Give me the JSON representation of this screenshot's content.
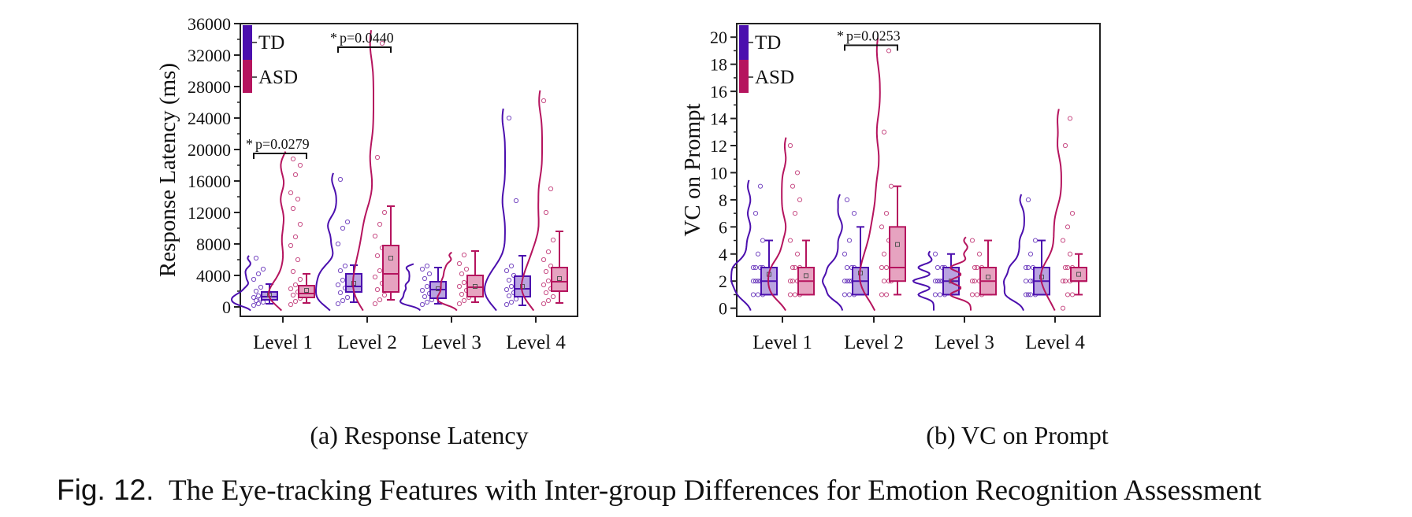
{
  "figure": {
    "prefix": "Fig. 12.",
    "caption": "The Eye-tracking Features with Inter-group Differences for Emotion Recognition Assessment"
  },
  "colors": {
    "td": "#4B0FAE",
    "asd": "#B5145E",
    "td_box": "#B9A3E0",
    "asd_box": "#E6A3C0"
  },
  "legend": [
    "TD",
    "ASD"
  ],
  "chart_data": [
    {
      "type": "box",
      "subcaption": "(a) Response Latency",
      "ylabel": "Response Latency (ms)",
      "ylim": [
        -1200,
        36000
      ],
      "yticks": [
        0,
        4000,
        8000,
        12000,
        16000,
        20000,
        24000,
        28000,
        32000,
        36000
      ],
      "categories": [
        "Level 1",
        "Level 2",
        "Level 3",
        "Level 4"
      ],
      "series": [
        {
          "name": "TD",
          "boxes": [
            {
              "min": 400,
              "q1": 900,
              "median": 1300,
              "q3": 1900,
              "max": 2900,
              "mean": 1500,
              "points": [
                200,
                400,
                600,
                800,
                1000,
                1200,
                1400,
                1600,
                2000,
                2500,
                3500,
                4200,
                4800,
                6200
              ]
            },
            {
              "min": 600,
              "q1": 1900,
              "median": 2600,
              "q3": 4200,
              "max": 5300,
              "mean": 3000,
              "points": [
                400,
                800,
                1200,
                1800,
                2400,
                2800,
                3400,
                4000,
                4600,
                5200,
                8000,
                10000,
                10800,
                16200
              ]
            },
            {
              "min": 400,
              "q1": 1100,
              "median": 2200,
              "q3": 3200,
              "max": 5000,
              "mean": 2300,
              "points": [
                300,
                600,
                900,
                1300,
                1700,
                2100,
                2600,
                3000,
                3600,
                4200,
                4800,
                5200
              ]
            },
            {
              "min": 200,
              "q1": 1300,
              "median": 2300,
              "q3": 3900,
              "max": 6500,
              "mean": 2600,
              "points": [
                300,
                600,
                1000,
                1400,
                1800,
                2200,
                2600,
                3000,
                3400,
                4000,
                4600,
                5200,
                13500,
                24000
              ]
            }
          ]
        },
        {
          "name": "ASD",
          "boxes": [
            {
              "min": 500,
              "q1": 1200,
              "median": 1700,
              "q3": 2700,
              "max": 4200,
              "mean": 2100,
              "points": [
                300,
                700,
                1100,
                1500,
                1900,
                2300,
                2800,
                3500,
                4500,
                6000,
                7800,
                8900,
                10500,
                12500,
                13700,
                14500,
                16800,
                18000,
                18800
              ]
            },
            {
              "min": 900,
              "q1": 1900,
              "median": 4200,
              "q3": 7800,
              "max": 12800,
              "mean": 6200,
              "points": [
                400,
                900,
                1500,
                2200,
                3000,
                3800,
                4600,
                5500,
                6500,
                7500,
                9000,
                10500,
                12000,
                19000,
                33500
              ]
            },
            {
              "min": 600,
              "q1": 1300,
              "median": 2500,
              "q3": 4000,
              "max": 7100,
              "mean": 2600,
              "points": [
                400,
                800,
                1200,
                1600,
                2100,
                2600,
                3100,
                3600,
                4200,
                4800,
                5500,
                6600
              ]
            },
            {
              "min": 500,
              "q1": 2000,
              "median": 3200,
              "q3": 5000,
              "max": 9600,
              "mean": 3600,
              "points": [
                400,
                800,
                1300,
                1800,
                2300,
                2800,
                3300,
                3800,
                4500,
                5200,
                6000,
                7000,
                8500,
                12000,
                15000,
                26200
              ]
            }
          ]
        }
      ],
      "annotations": [
        {
          "category": "Level 1",
          "star": "*",
          "text": "p=0.0279",
          "y": 19500
        },
        {
          "category": "Level 2",
          "star": "*",
          "text": "p=0.0440",
          "y": 33000
        }
      ]
    },
    {
      "type": "box",
      "subcaption": "(b) VC on Prompt",
      "ylabel": "VC on Prompt",
      "ylim": [
        -0.6,
        21
      ],
      "yticks": [
        0,
        2,
        4,
        6,
        8,
        10,
        12,
        14,
        16,
        18,
        20
      ],
      "categories": [
        "Level 1",
        "Level 2",
        "Level 3",
        "Level 4"
      ],
      "series": [
        {
          "name": "TD",
          "boxes": [
            {
              "min": 1,
              "q1": 1,
              "median": 2,
              "q3": 3,
              "max": 5,
              "mean": 2.5,
              "points": [
                1,
                1,
                1,
                2,
                2,
                2,
                2,
                3,
                3,
                3,
                3,
                4,
                5,
                7,
                9
              ]
            },
            {
              "min": 1,
              "q1": 1,
              "median": 2,
              "q3": 3,
              "max": 6,
              "mean": 2.6,
              "points": [
                1,
                1,
                1,
                2,
                2,
                2,
                2,
                3,
                3,
                3,
                4,
                5,
                7,
                8
              ]
            },
            {
              "min": 1,
              "q1": 1,
              "median": 2,
              "q3": 3,
              "max": 4,
              "mean": 2.0,
              "points": [
                1,
                1,
                1,
                2,
                2,
                2,
                2,
                3,
                3,
                3,
                4
              ]
            },
            {
              "min": 1,
              "q1": 1,
              "median": 2,
              "q3": 3,
              "max": 5,
              "mean": 2.3,
              "points": [
                1,
                1,
                1,
                1,
                2,
                2,
                2,
                2,
                3,
                3,
                3,
                4,
                5,
                8
              ]
            }
          ]
        },
        {
          "name": "ASD",
          "boxes": [
            {
              "min": 1,
              "q1": 1,
              "median": 2,
              "q3": 3,
              "max": 5,
              "mean": 2.4,
              "points": [
                1,
                1,
                1,
                2,
                2,
                2,
                3,
                3,
                3,
                4,
                5,
                7,
                8,
                9,
                10,
                12
              ]
            },
            {
              "min": 1,
              "q1": 2,
              "median": 3,
              "q3": 6,
              "max": 9,
              "mean": 4.7,
              "points": [
                1,
                1,
                2,
                2,
                2,
                3,
                3,
                4,
                4,
                5,
                6,
                7,
                9,
                13,
                19
              ]
            },
            {
              "min": 1,
              "q1": 1,
              "median": 2,
              "q3": 3,
              "max": 5,
              "mean": 2.3,
              "points": [
                1,
                1,
                1,
                2,
                2,
                2,
                3,
                3,
                3,
                4,
                5
              ]
            },
            {
              "min": 1,
              "q1": 2,
              "median": 2,
              "q3": 3,
              "max": 4,
              "mean": 2.5,
              "points": [
                0,
                1,
                1,
                2,
                2,
                2,
                3,
                3,
                3,
                4,
                5,
                6,
                7,
                12,
                14
              ]
            }
          ]
        }
      ],
      "annotations": [
        {
          "category": "Level 2",
          "star": "*",
          "text": "p=0.0253",
          "y": 19.4
        }
      ]
    }
  ]
}
